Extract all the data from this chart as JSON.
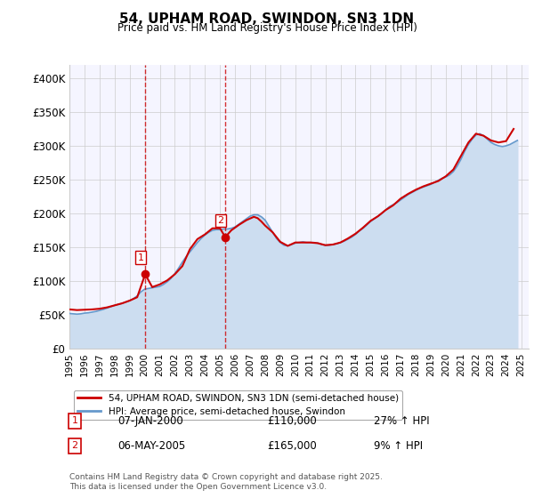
{
  "title": "54, UPHAM ROAD, SWINDON, SN3 1DN",
  "subtitle": "Price paid vs. HM Land Registry's House Price Index (HPI)",
  "ylabel_ticks": [
    "£0",
    "£50K",
    "£100K",
    "£150K",
    "£200K",
    "£250K",
    "£300K",
    "£350K",
    "£400K"
  ],
  "ytick_vals": [
    0,
    50000,
    100000,
    150000,
    200000,
    250000,
    300000,
    350000,
    400000
  ],
  "ylim": [
    0,
    420000
  ],
  "xlim_start": 1995.0,
  "xlim_end": 2025.5,
  "red_line_color": "#cc0000",
  "blue_line_color": "#6699cc",
  "blue_fill_color": "#ccddf0",
  "vline_color": "#cc0000",
  "vline_alpha": 0.6,
  "grid_color": "#cccccc",
  "background_color": "#ffffff",
  "plot_bg_color": "#f5f5ff",
  "legend_label_red": "54, UPHAM ROAD, SWINDON, SN3 1DN (semi-detached house)",
  "legend_label_blue": "HPI: Average price, semi-detached house, Swindon",
  "transaction1_label": "1",
  "transaction1_date": "07-JAN-2000",
  "transaction1_price": "£110,000",
  "transaction1_hpi": "27% ↑ HPI",
  "transaction1_year": 2000.03,
  "transaction1_value": 110000,
  "transaction2_label": "2",
  "transaction2_date": "06-MAY-2005",
  "transaction2_price": "£165,000",
  "transaction2_hpi": "9% ↑ HPI",
  "transaction2_year": 2005.35,
  "transaction2_value": 165000,
  "footnote": "Contains HM Land Registry data © Crown copyright and database right 2025.\nThis data is licensed under the Open Government Licence v3.0.",
  "hpi_years": [
    1995.0,
    1995.25,
    1995.5,
    1995.75,
    1996.0,
    1996.25,
    1996.5,
    1996.75,
    1997.0,
    1997.25,
    1997.5,
    1997.75,
    1998.0,
    1998.25,
    1998.5,
    1998.75,
    1999.0,
    1999.25,
    1999.5,
    1999.75,
    2000.0,
    2000.25,
    2000.5,
    2000.75,
    2001.0,
    2001.25,
    2001.5,
    2001.75,
    2002.0,
    2002.25,
    2002.5,
    2002.75,
    2003.0,
    2003.25,
    2003.5,
    2003.75,
    2004.0,
    2004.25,
    2004.5,
    2004.75,
    2005.0,
    2005.25,
    2005.5,
    2005.75,
    2006.0,
    2006.25,
    2006.5,
    2006.75,
    2007.0,
    2007.25,
    2007.5,
    2007.75,
    2008.0,
    2008.25,
    2008.5,
    2008.75,
    2009.0,
    2009.25,
    2009.5,
    2009.75,
    2010.0,
    2010.25,
    2010.5,
    2010.75,
    2011.0,
    2011.25,
    2011.5,
    2011.75,
    2012.0,
    2012.25,
    2012.5,
    2012.75,
    2013.0,
    2013.25,
    2013.5,
    2013.75,
    2014.0,
    2014.25,
    2014.5,
    2014.75,
    2015.0,
    2015.25,
    2015.5,
    2015.75,
    2016.0,
    2016.25,
    2016.5,
    2016.75,
    2017.0,
    2017.25,
    2017.5,
    2017.75,
    2018.0,
    2018.25,
    2018.5,
    2018.75,
    2019.0,
    2019.25,
    2019.5,
    2019.75,
    2020.0,
    2020.25,
    2020.5,
    2020.75,
    2021.0,
    2021.25,
    2021.5,
    2021.75,
    2022.0,
    2022.25,
    2022.5,
    2022.75,
    2023.0,
    2023.25,
    2023.5,
    2023.75,
    2024.0,
    2024.25,
    2024.5,
    2024.75
  ],
  "hpi_values": [
    52000,
    51500,
    51000,
    51500,
    52500,
    53000,
    54000,
    55000,
    56500,
    58000,
    60000,
    62000,
    64000,
    65500,
    67000,
    69000,
    71000,
    74000,
    78000,
    84000,
    88000,
    89000,
    90000,
    91000,
    92000,
    95000,
    99000,
    104000,
    111000,
    119000,
    128000,
    136000,
    143000,
    150000,
    157000,
    163000,
    168000,
    172000,
    175000,
    176000,
    176000,
    177000,
    177000,
    178000,
    180000,
    184000,
    188000,
    192000,
    196000,
    198000,
    198000,
    195000,
    190000,
    181000,
    172000,
    163000,
    157000,
    153000,
    152000,
    154000,
    156000,
    157000,
    158000,
    157000,
    157000,
    157000,
    156000,
    154000,
    153000,
    153000,
    154000,
    155000,
    157000,
    159000,
    162000,
    165000,
    169000,
    174000,
    178000,
    183000,
    188000,
    192000,
    196000,
    200000,
    205000,
    210000,
    213000,
    216000,
    220000,
    224000,
    228000,
    231000,
    234000,
    237000,
    239000,
    241000,
    243000,
    246000,
    249000,
    252000,
    254000,
    257000,
    262000,
    270000,
    280000,
    292000,
    302000,
    310000,
    316000,
    318000,
    315000,
    310000,
    305000,
    302000,
    300000,
    299000,
    300000,
    302000,
    305000,
    308000
  ],
  "red_years": [
    1995.0,
    1995.5,
    1996.0,
    1996.5,
    1997.0,
    1997.5,
    1998.0,
    1998.5,
    1999.0,
    1999.5,
    2000.03,
    2000.5,
    2001.0,
    2001.5,
    2002.0,
    2002.5,
    2003.0,
    2003.5,
    2004.0,
    2004.5,
    2005.0,
    2005.35,
    2005.75,
    2006.25,
    2006.75,
    2007.25,
    2007.5,
    2007.75,
    2008.0,
    2008.5,
    2009.0,
    2009.5,
    2010.0,
    2010.5,
    2011.0,
    2011.5,
    2012.0,
    2012.5,
    2013.0,
    2013.5,
    2014.0,
    2014.5,
    2015.0,
    2015.5,
    2016.0,
    2016.5,
    2017.0,
    2017.5,
    2018.0,
    2018.5,
    2019.0,
    2019.5,
    2020.0,
    2020.5,
    2021.0,
    2021.5,
    2022.0,
    2022.5,
    2023.0,
    2023.5,
    2024.0,
    2024.5
  ],
  "red_values": [
    58000,
    57000,
    57500,
    58000,
    59000,
    61000,
    64000,
    67000,
    71000,
    76000,
    110000,
    91000,
    95000,
    101000,
    110000,
    122000,
    147000,
    162000,
    169000,
    178000,
    178000,
    165000,
    175000,
    183000,
    190000,
    195000,
    193000,
    188000,
    182000,
    172000,
    158000,
    152000,
    157000,
    157000,
    157000,
    156000,
    153000,
    154000,
    157000,
    163000,
    170000,
    179000,
    189000,
    196000,
    205000,
    212000,
    222000,
    229000,
    235000,
    240000,
    244000,
    248000,
    255000,
    265000,
    285000,
    305000,
    318000,
    315000,
    308000,
    305000,
    307000,
    325000
  ]
}
